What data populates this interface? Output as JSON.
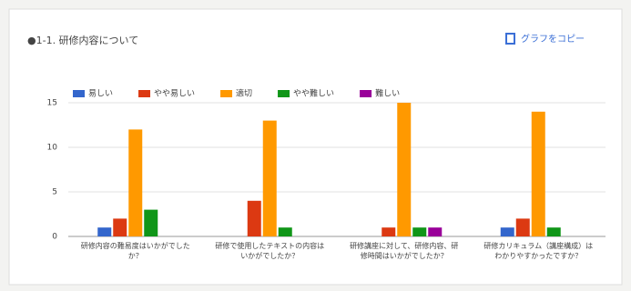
{
  "chart_data": {
    "type": "bar",
    "title": "●1-1. 研修内容について",
    "copy_button": "グラフをコピー",
    "categories": [
      "研修内容の難易度はいかがでしたか？",
      "研修で使用したテキストの内容はいかがでしたか？",
      "研修講座に対して、研修内容、研修時間はいかがでしたか？",
      "研修カリキュラム（講座構成）はわかりやすかったですか？"
    ],
    "series": [
      {
        "name": "易しい",
        "color": "#3366cc",
        "values": [
          1,
          0,
          0,
          1
        ]
      },
      {
        "name": "やや易しい",
        "color": "#dc3912",
        "values": [
          2,
          4,
          1,
          2
        ]
      },
      {
        "name": "適切",
        "color": "#ff9900",
        "values": [
          12,
          13,
          15,
          14
        ]
      },
      {
        "name": "やや難しい",
        "color": "#109618",
        "values": [
          3,
          1,
          1,
          1
        ]
      },
      {
        "name": "難しい",
        "color": "#990099",
        "values": [
          0,
          0,
          1,
          0
        ]
      }
    ],
    "ylim": [
      0,
      15
    ],
    "yticks": [
      0,
      5,
      10,
      15
    ],
    "grid": true,
    "legend": "top"
  }
}
